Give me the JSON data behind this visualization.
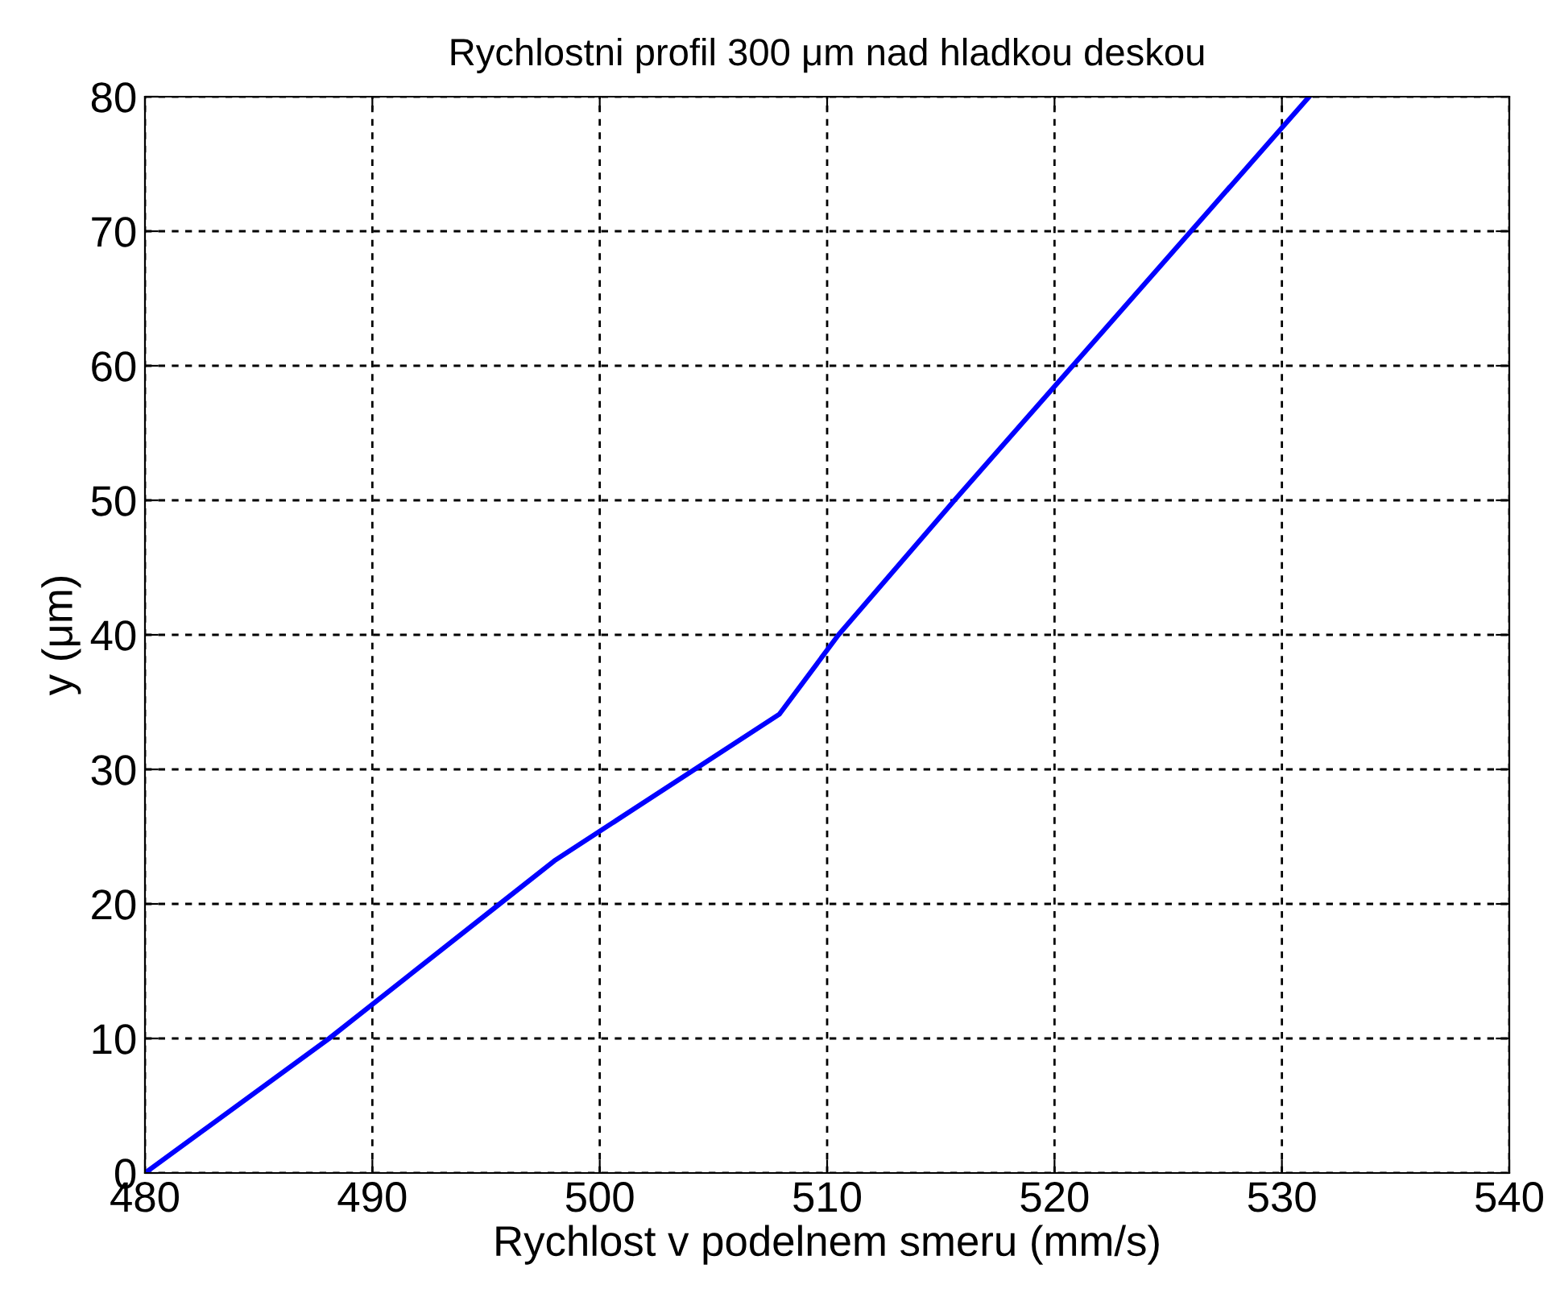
{
  "chart_data": {
    "type": "line",
    "title": "Rychlostni profil 300 μm nad hladkou deskou",
    "xlabel": "Rychlost v podelnem smeru (mm/s)",
    "ylabel": "y (μm)",
    "x": [
      480,
      488.1,
      495.6,
      498,
      507.9,
      510.5,
      515.6,
      520.8,
      526.0,
      531.2
    ],
    "series": [
      {
        "color": "#0000ff",
        "values": [
          0,
          10,
          20,
          23.2,
          34.1,
          40,
          50,
          60,
          70,
          80
        ]
      }
    ],
    "xlim": [
      480,
      540
    ],
    "xticks": [
      480,
      490,
      500,
      510,
      520,
      530,
      540
    ],
    "ylim": [
      0,
      80
    ],
    "yticks": [
      0,
      10,
      20,
      30,
      40,
      50,
      60,
      70,
      80
    ],
    "grid": true,
    "line_style": "solid",
    "marker": "none"
  }
}
